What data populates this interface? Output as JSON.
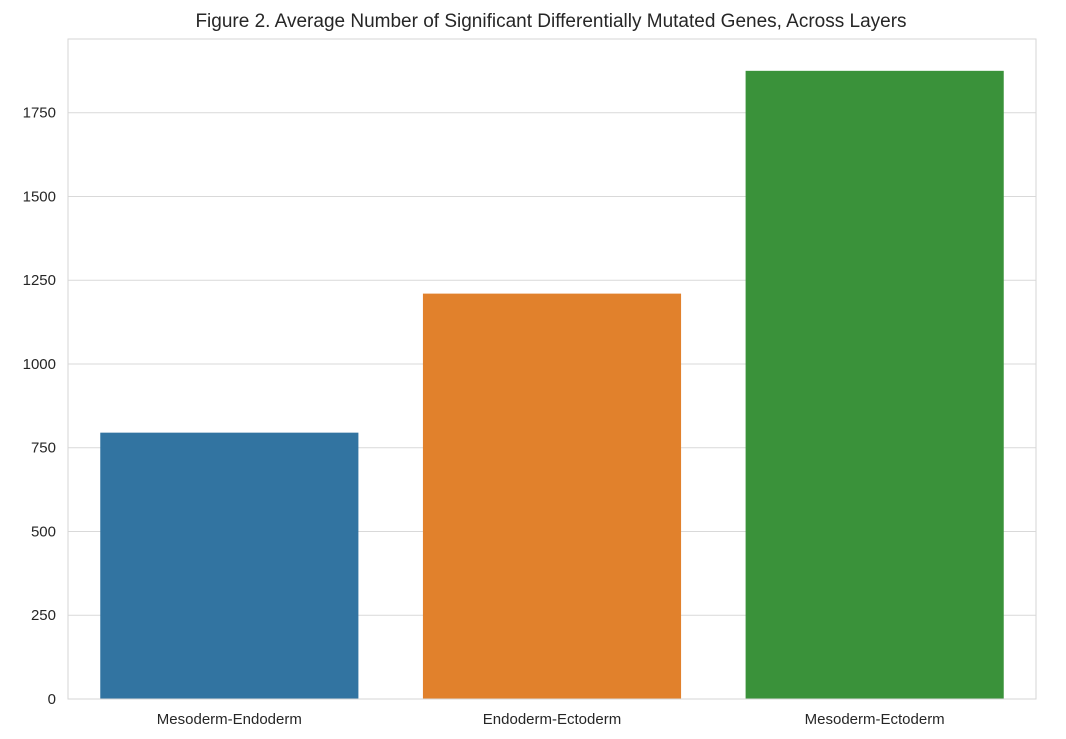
{
  "chart_data": {
    "type": "bar",
    "title": "Figure 2. Average Number of Significant Differentially Mutated Genes, Across Layers",
    "xlabel": "",
    "ylabel": "",
    "categories": [
      "Mesoderm-Endoderm",
      "Endoderm-Ectoderm",
      "Mesoderm-Ectoderm"
    ],
    "values": [
      795,
      1210,
      1875
    ],
    "colors": [
      "#3274a1",
      "#e1812c",
      "#3a923a"
    ],
    "ylim": [
      0,
      1970
    ],
    "yticks": [
      0,
      250,
      500,
      750,
      1000,
      1250,
      1500,
      1750
    ],
    "grid": true,
    "grid_axis": "y",
    "legend": "none"
  }
}
